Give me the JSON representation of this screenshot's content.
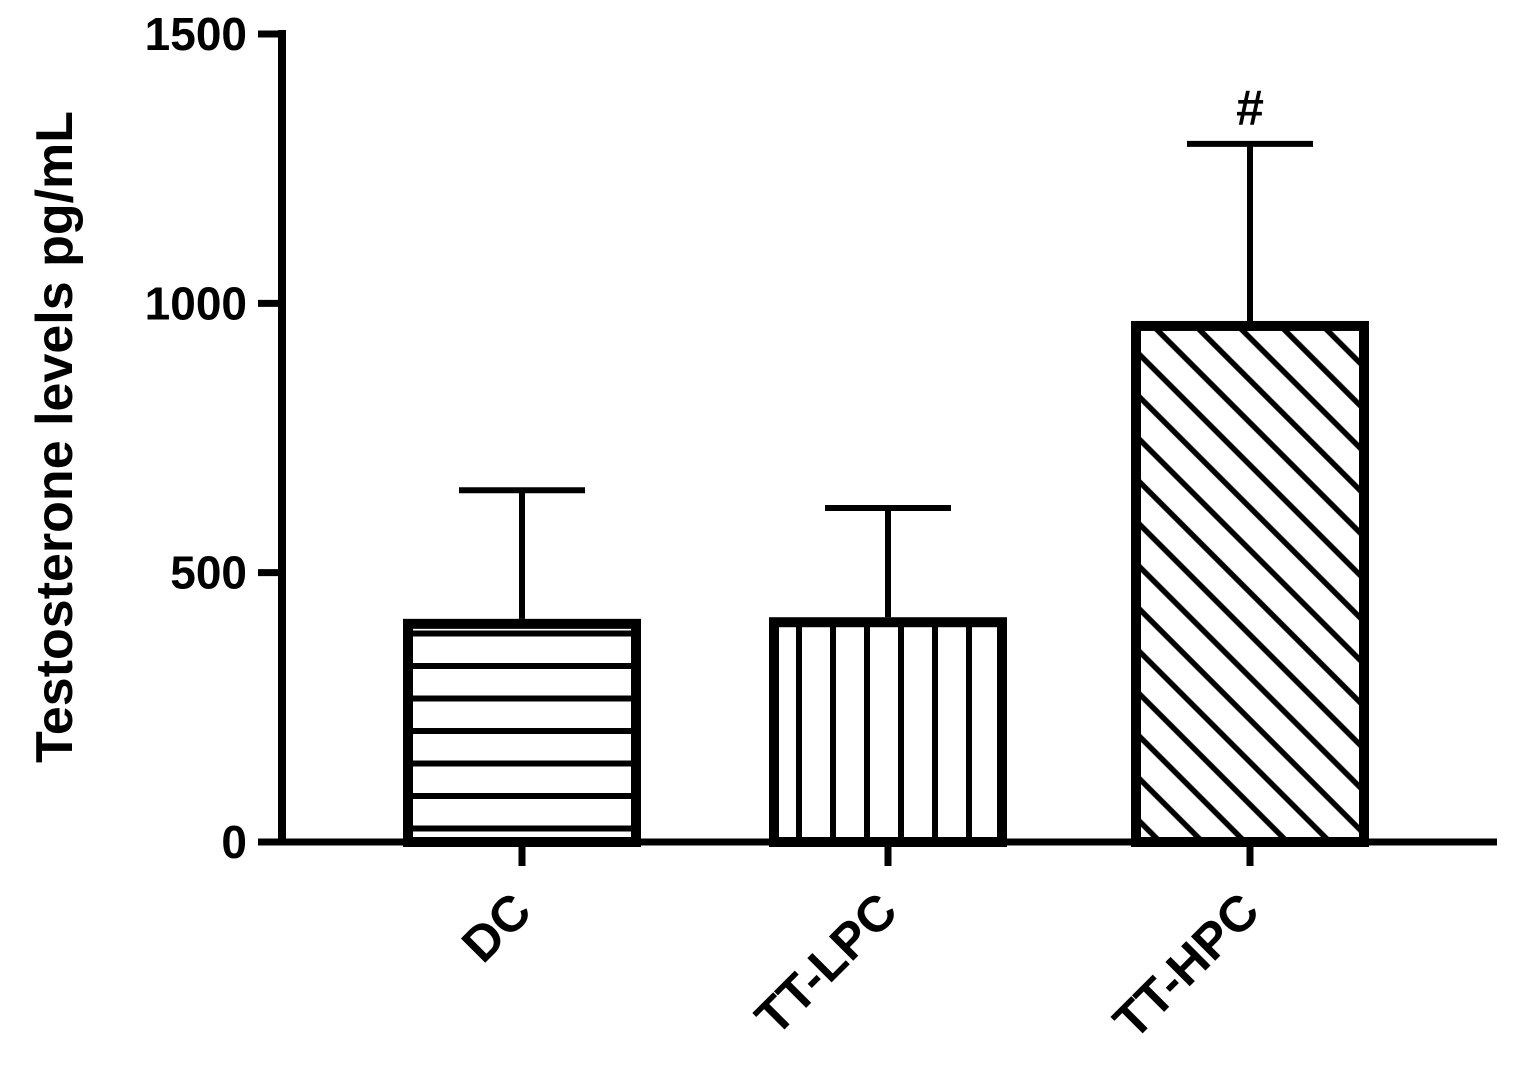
{
  "chart_data": {
    "type": "bar",
    "title": "",
    "xlabel": "",
    "ylabel": "Testosterone levels pg/mL",
    "categories": [
      "DC",
      "TT-LPC",
      "TT-HPC"
    ],
    "values": [
      405,
      408,
      958
    ],
    "error_plus": [
      248,
      212,
      338
    ],
    "patterns": [
      "horizontal",
      "vertical",
      "diagonal"
    ],
    "annotations": [
      "",
      "",
      "#"
    ],
    "ylim": [
      0,
      1500
    ],
    "yticks": [
      0,
      500,
      1000,
      1500
    ],
    "ytick_labels": [
      "0",
      "500",
      "1000",
      "1500"
    ],
    "grid": false,
    "legend": "none",
    "colors": {
      "stroke": "#000000",
      "fill": "#ffffff"
    }
  }
}
